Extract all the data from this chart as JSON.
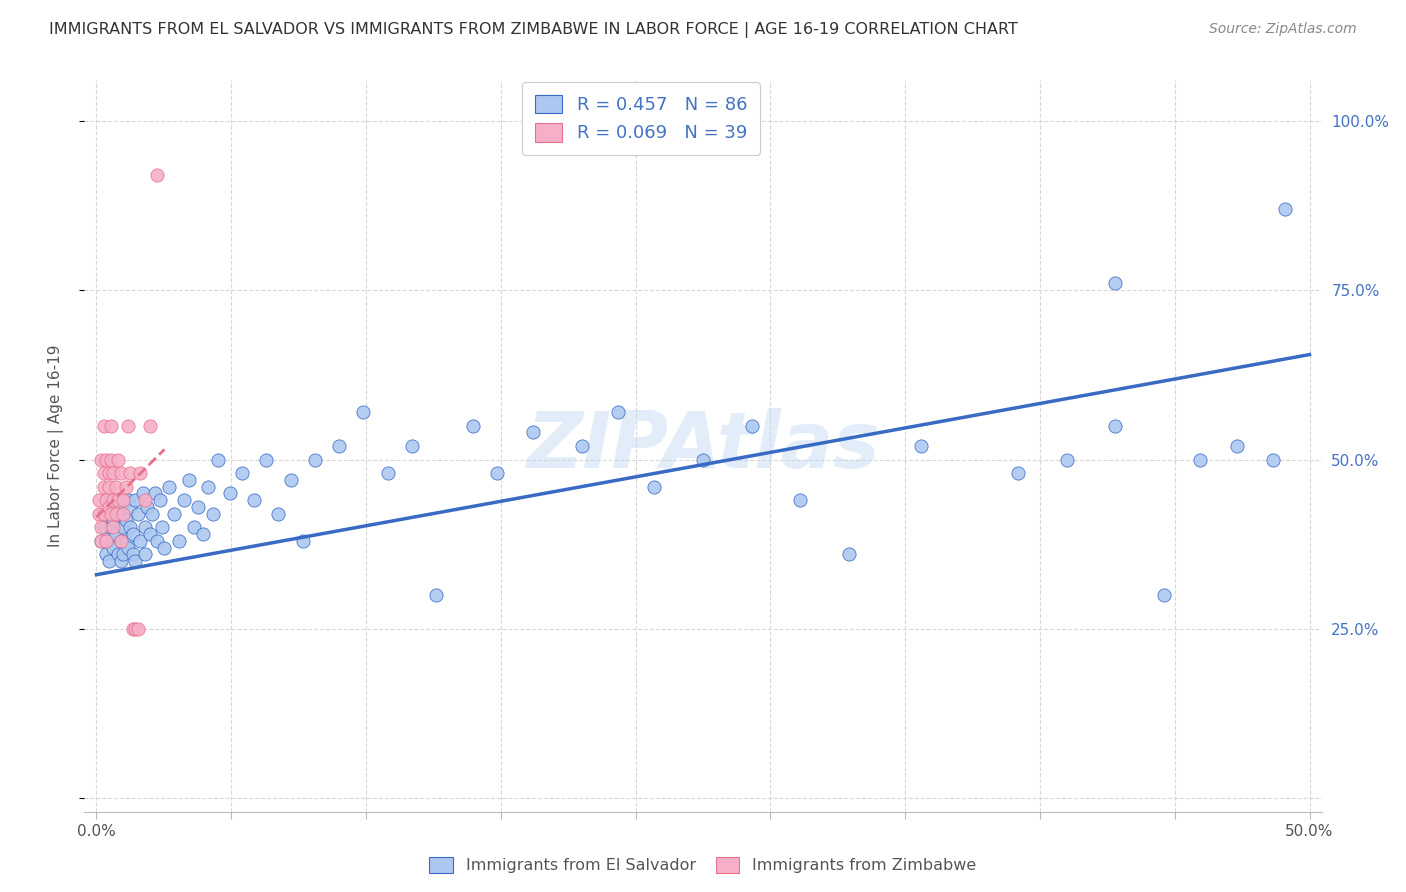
{
  "title": "IMMIGRANTS FROM EL SALVADOR VS IMMIGRANTS FROM ZIMBABWE IN LABOR FORCE | AGE 16-19 CORRELATION CHART",
  "source": "Source: ZipAtlas.com",
  "ylabel": "In Labor Force | Age 16-19",
  "ytick_labels": [
    "",
    "25.0%",
    "50.0%",
    "75.0%",
    "100.0%"
  ],
  "ytick_positions": [
    0.0,
    0.25,
    0.5,
    0.75,
    1.0
  ],
  "xtick_positions": [
    0.0,
    0.0556,
    0.1111,
    0.1667,
    0.2222,
    0.2778,
    0.3333,
    0.3889,
    0.4444,
    0.5
  ],
  "xlim": [
    -0.005,
    0.505
  ],
  "ylim": [
    -0.02,
    1.06
  ],
  "R_salvador": 0.457,
  "N_salvador": 86,
  "R_zimbabwe": 0.069,
  "N_zimbabwe": 39,
  "color_salvador": "#adc8f0",
  "color_zimbabwe": "#f5afc8",
  "line_color_salvador": "#3a6bc4",
  "line_color_zimbabwe": "#e8708a",
  "legend_text_color": "#4472c4",
  "watermark": "ZIPAtlas",
  "background_color": "#ffffff",
  "grid_color": "#d8d8d8",
  "title_color": "#333333",
  "right_axis_color": "#4472c4",
  "sal_line_x": [
    0.0,
    0.5
  ],
  "sal_line_y": [
    0.33,
    0.655
  ],
  "zim_line_x": [
    0.0,
    0.028
  ],
  "zim_line_y": [
    0.415,
    0.515
  ],
  "salvador_x": [
    0.002,
    0.003,
    0.004,
    0.004,
    0.005,
    0.005,
    0.006,
    0.006,
    0.007,
    0.007,
    0.008,
    0.008,
    0.009,
    0.009,
    0.01,
    0.01,
    0.01,
    0.011,
    0.011,
    0.012,
    0.012,
    0.013,
    0.013,
    0.014,
    0.014,
    0.015,
    0.015,
    0.016,
    0.016,
    0.017,
    0.018,
    0.019,
    0.02,
    0.02,
    0.021,
    0.022,
    0.023,
    0.024,
    0.025,
    0.026,
    0.027,
    0.028,
    0.03,
    0.032,
    0.034,
    0.036,
    0.038,
    0.04,
    0.042,
    0.044,
    0.046,
    0.048,
    0.05,
    0.055,
    0.06,
    0.065,
    0.07,
    0.075,
    0.08,
    0.085,
    0.09,
    0.1,
    0.11,
    0.12,
    0.13,
    0.14,
    0.155,
    0.165,
    0.18,
    0.2,
    0.215,
    0.23,
    0.25,
    0.27,
    0.29,
    0.31,
    0.34,
    0.38,
    0.4,
    0.42,
    0.44,
    0.455,
    0.47,
    0.485,
    0.42,
    0.49
  ],
  "salvador_y": [
    0.38,
    0.4,
    0.36,
    0.42,
    0.35,
    0.38,
    0.4,
    0.43,
    0.37,
    0.41,
    0.39,
    0.44,
    0.36,
    0.42,
    0.35,
    0.38,
    0.43,
    0.4,
    0.36,
    0.41,
    0.38,
    0.44,
    0.37,
    0.4,
    0.43,
    0.36,
    0.39,
    0.44,
    0.35,
    0.42,
    0.38,
    0.45,
    0.4,
    0.36,
    0.43,
    0.39,
    0.42,
    0.45,
    0.38,
    0.44,
    0.4,
    0.37,
    0.46,
    0.42,
    0.38,
    0.44,
    0.47,
    0.4,
    0.43,
    0.39,
    0.46,
    0.42,
    0.5,
    0.45,
    0.48,
    0.44,
    0.5,
    0.42,
    0.47,
    0.38,
    0.5,
    0.52,
    0.57,
    0.48,
    0.52,
    0.3,
    0.55,
    0.48,
    0.54,
    0.52,
    0.57,
    0.46,
    0.5,
    0.55,
    0.44,
    0.36,
    0.52,
    0.48,
    0.5,
    0.55,
    0.3,
    0.5,
    0.52,
    0.5,
    0.76,
    0.87
  ],
  "zimbabwe_x": [
    0.001,
    0.001,
    0.002,
    0.002,
    0.002,
    0.003,
    0.003,
    0.003,
    0.003,
    0.004,
    0.004,
    0.004,
    0.005,
    0.005,
    0.005,
    0.006,
    0.006,
    0.006,
    0.007,
    0.007,
    0.007,
    0.008,
    0.008,
    0.009,
    0.009,
    0.01,
    0.01,
    0.011,
    0.011,
    0.012,
    0.013,
    0.014,
    0.015,
    0.016,
    0.017,
    0.018,
    0.02,
    0.022,
    0.025
  ],
  "zimbabwe_y": [
    0.42,
    0.44,
    0.5,
    0.4,
    0.38,
    0.46,
    0.48,
    0.42,
    0.55,
    0.44,
    0.5,
    0.38,
    0.46,
    0.43,
    0.48,
    0.42,
    0.5,
    0.55,
    0.44,
    0.48,
    0.4,
    0.46,
    0.42,
    0.44,
    0.5,
    0.48,
    0.38,
    0.44,
    0.42,
    0.46,
    0.55,
    0.48,
    0.25,
    0.25,
    0.25,
    0.48,
    0.44,
    0.55,
    0.92
  ]
}
